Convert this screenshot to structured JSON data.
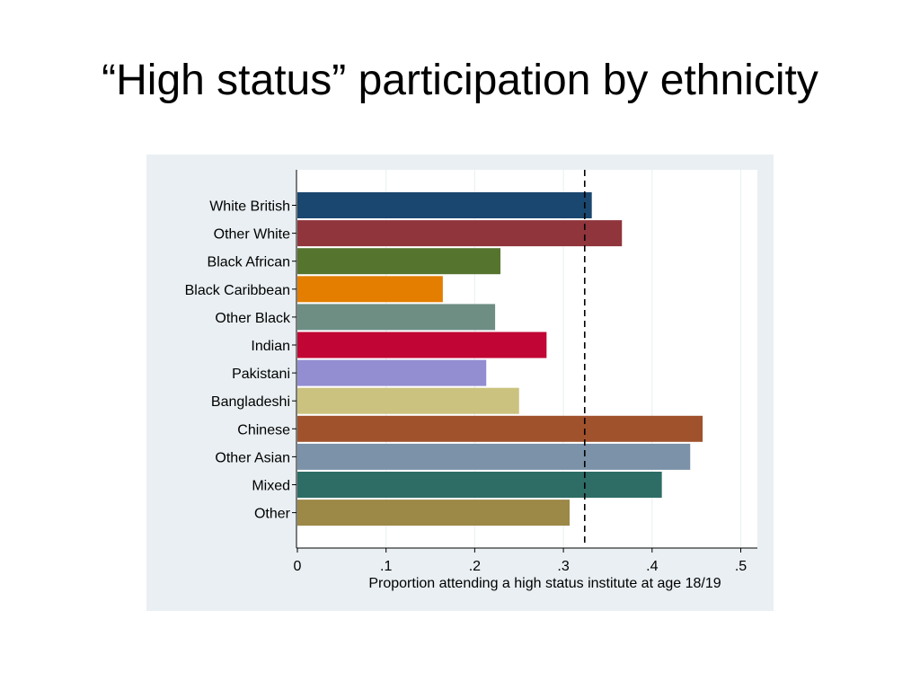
{
  "slide": {
    "title": "“High status” participation by ethnicity"
  },
  "chart_data": {
    "type": "bar",
    "orientation": "horizontal",
    "categories": [
      "White British",
      "Other White",
      "Black African",
      "Black Caribbean",
      "Other Black",
      "Indian",
      "Pakistani",
      "Bangladeshi",
      "Chinese",
      "Other Asian",
      "Mixed",
      "Other"
    ],
    "values": [
      0.332,
      0.366,
      0.229,
      0.164,
      0.223,
      0.281,
      0.213,
      0.25,
      0.457,
      0.443,
      0.411,
      0.307
    ],
    "colors": [
      "#1a476f",
      "#90353b",
      "#55752f",
      "#e37e00",
      "#6e8e84",
      "#c10534",
      "#938dd2",
      "#cac27e",
      "#a0522d",
      "#7b92a8",
      "#2d6d66",
      "#9c8847"
    ],
    "reference_line": 0.324,
    "xlabel": "Proportion attending a high status institute at age 18/19",
    "xlim": [
      0,
      0.52
    ],
    "xticks": [
      0,
      0.1,
      0.2,
      0.3,
      0.4,
      0.5
    ],
    "xtick_labels": [
      "0",
      ".1",
      ".2",
      ".3",
      ".4",
      ".5"
    ],
    "grid": "vertical",
    "plot_background": "#ffffff",
    "panel_background": "#e9eff2"
  }
}
